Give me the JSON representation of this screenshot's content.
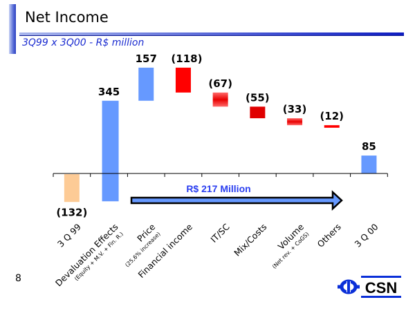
{
  "header": {
    "title": "Net Income",
    "subtitle": "3Q99 x 3Q00 - R$ million"
  },
  "page_number": "8",
  "logo": {
    "text": "CSN",
    "color": "#0a2fd8"
  },
  "colors": {
    "start": "#fdcb96",
    "positive": "#6699ff",
    "negative": "#ff0000",
    "end": "#6699ff",
    "arrow": "#6699ff"
  },
  "chart_data": {
    "type": "waterfall",
    "title": "Net Income",
    "subtitle": "3Q99 x 3Q00 - R$ million",
    "categories": [
      {
        "label": "3 Q 99",
        "sub": ""
      },
      {
        "label": "Devaluation Effects",
        "sub": "(Equity + M.V. + Fin. R.)"
      },
      {
        "label": "Price",
        "sub": "(25,6% increase)"
      },
      {
        "label": "Financial income",
        "sub": ""
      },
      {
        "label": "IT/SC",
        "sub": ""
      },
      {
        "label": "Mix/Costs",
        "sub": ""
      },
      {
        "label": "Volume",
        "sub": "(Net rev. + CoGS)"
      },
      {
        "label": "Others",
        "sub": ""
      },
      {
        "label": "3 Q 00",
        "sub": ""
      }
    ],
    "values": [
      -132,
      345,
      157,
      -118,
      -67,
      -55,
      -33,
      -12,
      85
    ],
    "value_labels": [
      "(132)",
      "345",
      "157",
      "(118)",
      "(67)",
      "(55)",
      "(33)",
      "(12)",
      "85"
    ],
    "kinds": [
      "start",
      "positive",
      "positive",
      "negative",
      "negative",
      "negative",
      "negative",
      "negative",
      "end"
    ],
    "annotation": "R$ 217 Million",
    "ylim": [
      -160,
      420
    ]
  }
}
